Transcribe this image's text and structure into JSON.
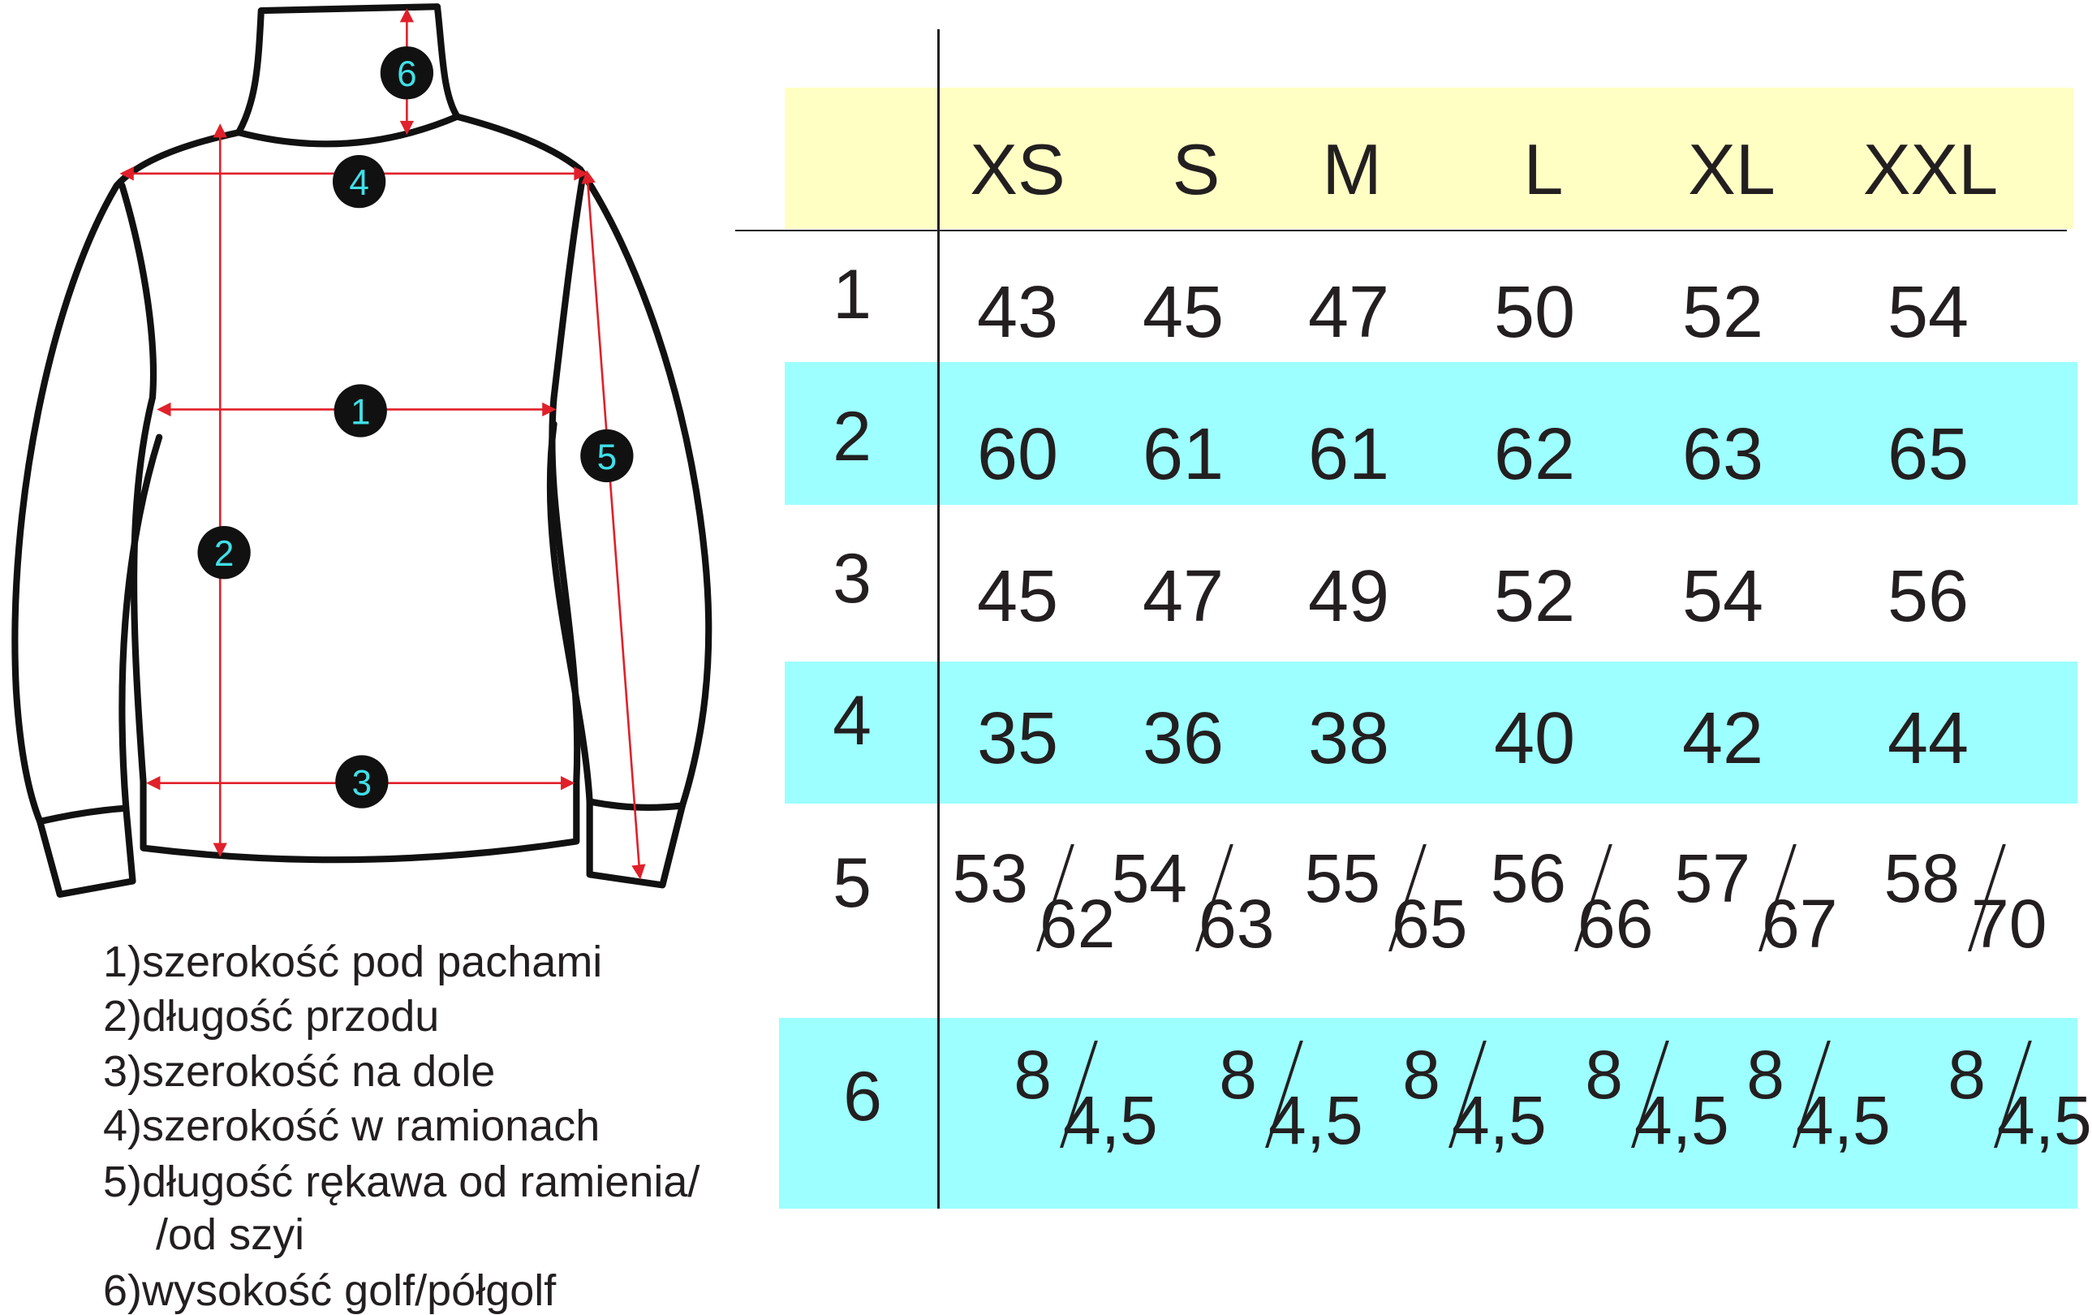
{
  "table": {
    "sizes": [
      "XS",
      "S",
      "M",
      "L",
      "XL",
      "XXL"
    ],
    "rows": [
      {
        "label": "1",
        "values": [
          "43",
          "45",
          "47",
          "50",
          "52",
          "54"
        ]
      },
      {
        "label": "2",
        "values": [
          "60",
          "61",
          "61",
          "62",
          "63",
          "65"
        ]
      },
      {
        "label": "3",
        "values": [
          "45",
          "47",
          "49",
          "52",
          "54",
          "56"
        ]
      },
      {
        "label": "4",
        "values": [
          "35",
          "36",
          "38",
          "40",
          "42",
          "44"
        ]
      },
      {
        "label": "5",
        "values": [
          {
            "num": "53",
            "den": "62"
          },
          {
            "num": "54",
            "den": "63"
          },
          {
            "num": "55",
            "den": "65"
          },
          {
            "num": "56",
            "den": "66"
          },
          {
            "num": "57",
            "den": "67"
          },
          {
            "num": "58",
            "den": "70"
          }
        ]
      },
      {
        "label": "6",
        "values": [
          {
            "num": "8",
            "den": "4,5"
          },
          {
            "num": "8",
            "den": "4,5"
          },
          {
            "num": "8",
            "den": "4,5"
          },
          {
            "num": "8",
            "den": "4,5"
          },
          {
            "num": "8",
            "den": "4,5"
          },
          {
            "num": "8",
            "den": "4,5"
          }
        ]
      }
    ]
  },
  "legend": [
    "1)szerokość pod pachami",
    "2)długość przodu",
    "3)szerokość na dole",
    "4)szerokość w ramionach",
    "5)długość rękawa od ramienia/",
    "/od szyi",
    "6)wysokość golf/półgolf"
  ],
  "markers": [
    "1",
    "2",
    "3",
    "4",
    "5",
    "6"
  ],
  "colors": {
    "header_bg": "#ffffc4",
    "row_highlight": "#9dffff",
    "measure_line": "#e0202a",
    "marker_text": "#3fe0e8",
    "text": "#231f20"
  }
}
